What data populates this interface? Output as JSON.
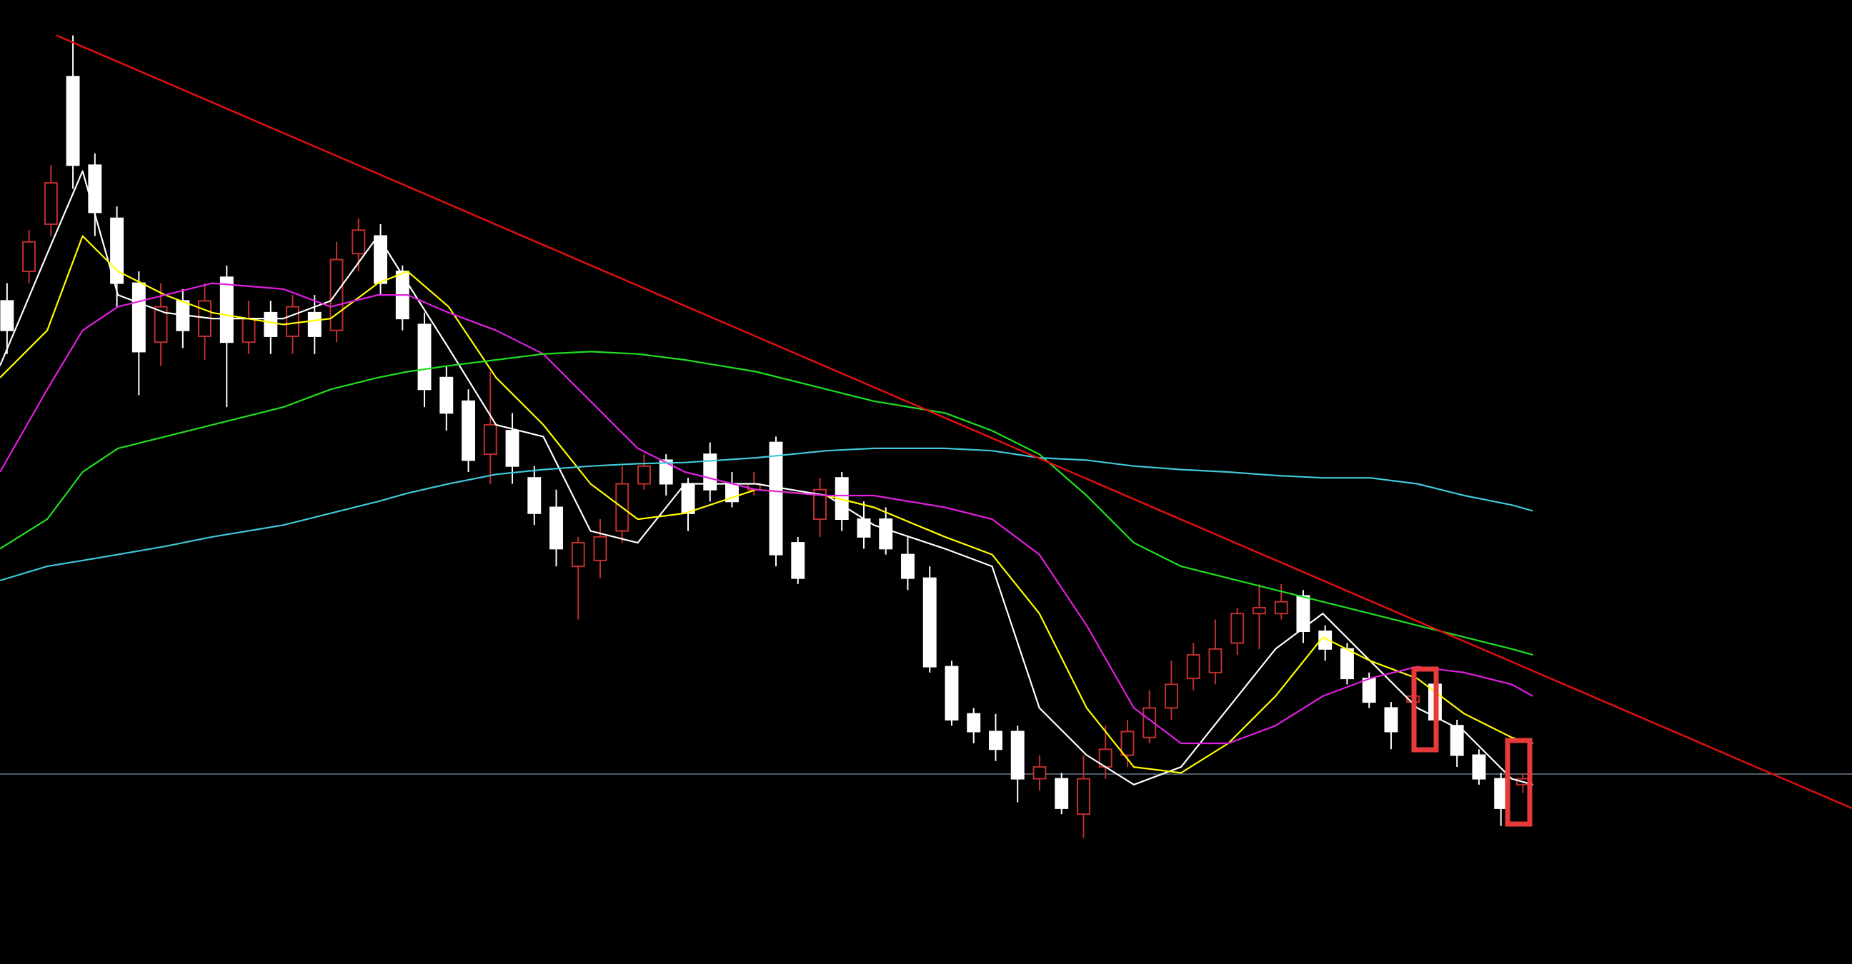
{
  "chart_data": {
    "type": "candlestick",
    "xlim": [
      -0.32,
      83.98
    ],
    "ylim": [
      0,
      817
    ],
    "up_color": "#c0302f",
    "down_color": "#ffffff",
    "background": "#000000",
    "open": [
      562,
      587,
      627,
      752,
      677,
      632,
      577,
      527,
      562,
      532,
      582,
      527,
      552,
      532,
      552,
      537,
      602,
      617,
      587,
      542,
      497,
      477,
      432,
      452,
      412,
      387,
      337,
      342,
      367,
      407,
      427,
      407,
      432,
      407,
      402,
      442,
      357,
      377,
      412,
      377,
      377,
      347,
      327,
      252,
      212,
      197,
      197,
      157,
      157,
      127,
      167,
      177,
      192,
      217,
      242,
      247,
      272,
      297,
      297,
      312,
      282,
      267,
      242,
      217,
      222,
      237,
      202,
      177,
      157,
      152
    ],
    "close": [
      537,
      612,
      662,
      677,
      637,
      577,
      519,
      557,
      537,
      562,
      527,
      547,
      532,
      557,
      532,
      597,
      622,
      577,
      547,
      487,
      467,
      427,
      457,
      422,
      382,
      352,
      357,
      362,
      407,
      422,
      407,
      382,
      402,
      392,
      407,
      347,
      327,
      402,
      377,
      362,
      352,
      327,
      252,
      207,
      197,
      182,
      157,
      167,
      132,
      157,
      182,
      197,
      217,
      237,
      262,
      267,
      297,
      302,
      307,
      282,
      267,
      242,
      222,
      197,
      227,
      207,
      177,
      157,
      132,
      157
    ],
    "high": [
      577,
      622,
      677,
      787,
      687,
      642,
      587,
      577,
      572,
      577,
      592,
      562,
      562,
      567,
      567,
      612,
      632,
      627,
      592,
      552,
      507,
      487,
      502,
      467,
      422,
      402,
      362,
      377,
      422,
      432,
      432,
      412,
      442,
      417,
      417,
      447,
      362,
      412,
      417,
      392,
      387,
      362,
      337,
      257,
      217,
      212,
      202,
      177,
      162,
      177,
      202,
      207,
      232,
      257,
      272,
      292,
      302,
      322,
      322,
      317,
      287,
      272,
      247,
      222,
      242,
      242,
      207,
      182,
      162,
      162
    ],
    "low": [
      517,
      577,
      617,
      657,
      617,
      557,
      482,
      507,
      522,
      512,
      472,
      517,
      517,
      517,
      517,
      527,
      587,
      567,
      537,
      472,
      452,
      417,
      407,
      407,
      372,
      337,
      292,
      327,
      357,
      402,
      397,
      367,
      392,
      387,
      397,
      337,
      322,
      362,
      367,
      352,
      347,
      317,
      247,
      202,
      187,
      172,
      137,
      147,
      127,
      107,
      157,
      167,
      187,
      207,
      232,
      237,
      262,
      267,
      292,
      272,
      257,
      237,
      217,
      182,
      202,
      202,
      167,
      152,
      117,
      145
    ],
    "ma_x": [
      -0.32,
      1.83,
      3.44,
      5.05,
      7.2,
      9.35,
      12.58,
      14.73,
      16.88,
      18.23,
      20.1,
      22.26,
      24.41,
      26.56,
      28.71,
      30.86,
      34.09,
      37.31,
      39.46,
      42.69,
      44.84,
      46.99,
      49.14,
      51.29,
      53.44,
      55.59,
      57.74,
      59.89,
      62.04,
      64.19,
      66.34,
      68.49,
      69.46
    ],
    "series": [
      {
        "color": "#ffffff",
        "values": [
          507,
          602,
          672,
          567,
          552,
          547,
          547,
          562,
          617,
          577,
          522,
          457,
          447,
          367,
          357,
          407,
          407,
          397,
          372,
          352,
          337,
          217,
          177,
          152,
          167,
          217,
          267,
          297,
          257,
          217,
          197,
          157,
          152
        ]
      },
      {
        "color": "#ffff00",
        "values": [
          497,
          537,
          617,
          587,
          567,
          552,
          542,
          547,
          577,
          587,
          557,
          497,
          457,
          407,
          377,
          382,
          402,
          397,
          387,
          362,
          347,
          297,
          217,
          167,
          162,
          187,
          227,
          277,
          257,
          242,
          212,
          192,
          187
        ]
      },
      {
        "color": "#e020e0",
        "values": [
          417,
          487,
          537,
          557,
          567,
          577,
          572,
          557,
          567,
          567,
          552,
          537,
          517,
          477,
          437,
          417,
          402,
          397,
          397,
          387,
          377,
          347,
          287,
          217,
          187,
          187,
          202,
          227,
          242,
          252,
          247,
          237,
          227
        ]
      },
      {
        "color": "#20e020",
        "values": [
          352,
          377,
          417,
          437,
          447,
          457,
          472,
          487,
          497,
          502,
          507,
          512,
          517,
          519,
          517,
          512,
          502,
          487,
          477,
          467,
          452,
          432,
          397,
          357,
          337,
          327,
          317,
          307,
          297,
          287,
          277,
          267,
          262
        ]
      },
      {
        "color": "#40c8d8",
        "values": [
          325,
          337,
          342,
          347,
          354,
          362,
          372,
          382,
          392,
          399,
          407,
          415,
          419,
          422,
          424,
          425,
          429,
          435,
          437,
          437,
          435,
          429,
          427,
          422,
          419,
          417,
          414,
          412,
          412,
          407,
          397,
          389,
          384
        ]
      }
    ],
    "trendline": {
      "color": "#e01010",
      "x": [
        2.26,
        83.98
      ],
      "values": [
        787,
        132
      ]
    },
    "hline": {
      "color": "#6a7a8a",
      "value": 161
    }
  }
}
